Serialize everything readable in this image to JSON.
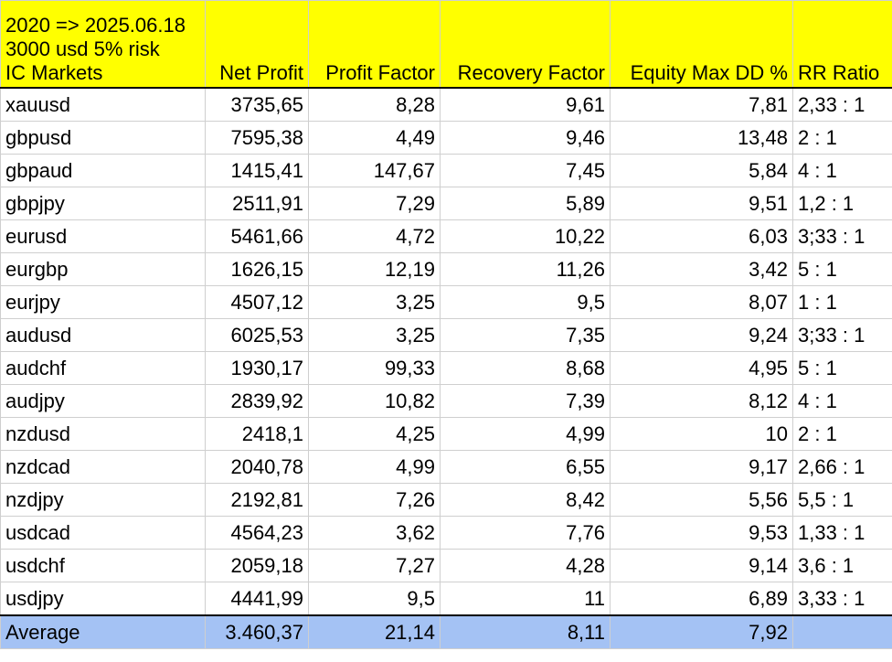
{
  "header": {
    "info_lines": [
      "2020 => 2025.06.18",
      "3000 usd 5% risk",
      "IC Markets"
    ],
    "columns": [
      "Net Profit",
      "Profit Factor",
      "Recovery Factor",
      "Equity Max DD %",
      "RR Ratio"
    ]
  },
  "rows": [
    {
      "pair": "xauusd",
      "net_profit": "3735,65",
      "profit_factor": "8,28",
      "recovery_factor": "9,61",
      "equity_dd": "7,81",
      "rr": "2,33 : 1"
    },
    {
      "pair": "gbpusd",
      "net_profit": "7595,38",
      "profit_factor": "4,49",
      "recovery_factor": "9,46",
      "equity_dd": "13,48",
      "rr": "2 : 1"
    },
    {
      "pair": "gbpaud",
      "net_profit": "1415,41",
      "profit_factor": "147,67",
      "recovery_factor": "7,45",
      "equity_dd": "5,84",
      "rr": "4 : 1"
    },
    {
      "pair": "gbpjpy",
      "net_profit": "2511,91",
      "profit_factor": "7,29",
      "recovery_factor": "5,89",
      "equity_dd": "9,51",
      "rr": "1,2 : 1"
    },
    {
      "pair": "eurusd",
      "net_profit": "5461,66",
      "profit_factor": "4,72",
      "recovery_factor": "10,22",
      "equity_dd": "6,03",
      "rr": "3;33 : 1"
    },
    {
      "pair": "eurgbp",
      "net_profit": "1626,15",
      "profit_factor": "12,19",
      "recovery_factor": "11,26",
      "equity_dd": "3,42",
      "rr": "5 : 1"
    },
    {
      "pair": "eurjpy",
      "net_profit": "4507,12",
      "profit_factor": "3,25",
      "recovery_factor": "9,5",
      "equity_dd": "8,07",
      "rr": "1 : 1"
    },
    {
      "pair": "audusd",
      "net_profit": "6025,53",
      "profit_factor": "3,25",
      "recovery_factor": "7,35",
      "equity_dd": "9,24",
      "rr": "3;33 : 1"
    },
    {
      "pair": "audchf",
      "net_profit": "1930,17",
      "profit_factor": "99,33",
      "recovery_factor": "8,68",
      "equity_dd": "4,95",
      "rr": "5 : 1"
    },
    {
      "pair": "audjpy",
      "net_profit": "2839,92",
      "profit_factor": "10,82",
      "recovery_factor": "7,39",
      "equity_dd": "8,12",
      "rr": "4 : 1"
    },
    {
      "pair": "nzdusd",
      "net_profit": "2418,1",
      "profit_factor": "4,25",
      "recovery_factor": "4,99",
      "equity_dd": "10",
      "rr": "2 : 1"
    },
    {
      "pair": "nzdcad",
      "net_profit": "2040,78",
      "profit_factor": "4,99",
      "recovery_factor": "6,55",
      "equity_dd": "9,17",
      "rr": "2,66 : 1"
    },
    {
      "pair": "nzdjpy",
      "net_profit": "2192,81",
      "profit_factor": "7,26",
      "recovery_factor": "8,42",
      "equity_dd": "5,56",
      "rr": "5,5 : 1"
    },
    {
      "pair": "usdcad",
      "net_profit": "4564,23",
      "profit_factor": "3,62",
      "recovery_factor": "7,76",
      "equity_dd": "9,53",
      "rr": "1,33 : 1"
    },
    {
      "pair": "usdchf",
      "net_profit": "2059,18",
      "profit_factor": "7,27",
      "recovery_factor": "4,28",
      "equity_dd": "9,14",
      "rr": "3,6 : 1"
    },
    {
      "pair": "usdjpy",
      "net_profit": "4441,99",
      "profit_factor": "9,5",
      "recovery_factor": "11",
      "equity_dd": "6,89",
      "rr": "3,33 : 1"
    }
  ],
  "average": {
    "label": "Average",
    "net_profit": "3.460,37",
    "profit_factor": "21,14",
    "recovery_factor": "8,11",
    "equity_dd": "7,92",
    "rr": ""
  },
  "colors": {
    "header_fill": "#ffff00",
    "average_fill": "#a4c2f4",
    "grid_line": "#cfcfcf"
  }
}
